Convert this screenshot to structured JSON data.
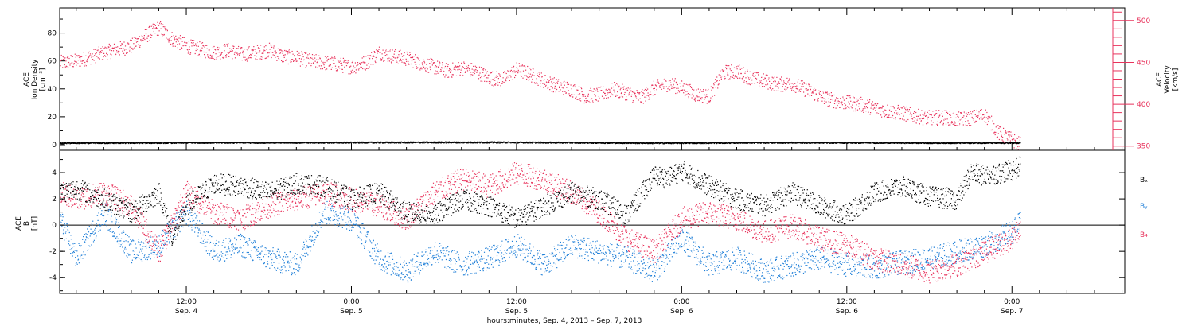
{
  "figure": {
    "xlabel": "hours:minutes, Sep.  4, 2013 – Sep.  7, 2013",
    "time_ticks": [
      {
        "hour": 12,
        "time": "12:00",
        "date": "Sep. 4"
      },
      {
        "hour": 24,
        "time": "0:00",
        "date": "Sep. 5"
      },
      {
        "hour": 36,
        "time": "12:00",
        "date": "Sep. 5"
      },
      {
        "hour": 48,
        "time": "0:00",
        "date": "Sep. 6"
      },
      {
        "hour": 60,
        "time": "12:00",
        "date": "Sep. 6"
      },
      {
        "hour": 72,
        "time": "0:00",
        "date": "Sep. 7"
      }
    ],
    "x_range_hours": [
      2.8,
      80.2
    ],
    "data_end_hour": 72.6,
    "colors": {
      "black": "#000000",
      "red": "#e8335c",
      "blue": "#1f7fd8"
    }
  },
  "chart_data": [
    {
      "type": "scatter",
      "left_ylabel": [
        "ACE",
        "Ion Density",
        "[cm⁻³]"
      ],
      "right_ylabel": [
        "ACE",
        "Velocity",
        "[km/s]"
      ],
      "ylim_left": [
        -4,
        98
      ],
      "ylim_right": [
        345,
        515
      ],
      "left_ticks": [
        0,
        20,
        40,
        60,
        80
      ],
      "right_ticks": [
        350,
        400,
        450,
        500
      ],
      "series": [
        {
          "name": "Ion Density",
          "axis": "left",
          "color": "#000000",
          "x": [
            2.8,
            8,
            14,
            20,
            26,
            30,
            34,
            38,
            42,
            46,
            50,
            54,
            58,
            62,
            66,
            70,
            72.6
          ],
          "y": [
            1.5,
            1.6,
            1.8,
            1.8,
            1.9,
            2.0,
            2.0,
            1.9,
            1.7,
            1.5,
            1.6,
            1.8,
            1.8,
            1.7,
            1.6,
            1.6,
            1.5
          ]
        },
        {
          "name": "Velocity",
          "axis": "right",
          "color": "#e8335c",
          "x": [
            2.8,
            4,
            6,
            8,
            9,
            10,
            11,
            12,
            13,
            14,
            15,
            16,
            17,
            18,
            19,
            20,
            21,
            22,
            23,
            24,
            25,
            26,
            27,
            28,
            29,
            30,
            31,
            32,
            33,
            34,
            35,
            36,
            37,
            38,
            39,
            40,
            41,
            42,
            43,
            44,
            45,
            46,
            47,
            48,
            49,
            50,
            51,
            52,
            53,
            54,
            55,
            56,
            57,
            58,
            59,
            60,
            61,
            62,
            63,
            64,
            65,
            66,
            67,
            68,
            69,
            70,
            71,
            72,
            72.6
          ],
          "y": [
            450,
            452,
            462,
            470,
            482,
            492,
            478,
            470,
            466,
            462,
            465,
            460,
            462,
            465,
            458,
            456,
            452,
            450,
            448,
            445,
            450,
            462,
            458,
            455,
            450,
            445,
            440,
            444,
            440,
            432,
            430,
            442,
            436,
            428,
            422,
            418,
            410,
            412,
            418,
            414,
            408,
            420,
            425,
            420,
            412,
            410,
            438,
            440,
            432,
            428,
            424,
            425,
            418,
            410,
            405,
            402,
            400,
            396,
            392,
            390,
            386,
            384,
            385,
            382,
            384,
            388,
            366,
            358,
            352
          ]
        }
      ]
    },
    {
      "type": "scatter",
      "ylabel": [
        "ACE",
        "B",
        "[nT]"
      ],
      "ylim": [
        -5.2,
        5.7
      ],
      "y_ticks": [
        -4,
        -2,
        0,
        2,
        4
      ],
      "legend": [
        "Bₓ",
        "Bᵧ",
        "B₄"
      ],
      "series": [
        {
          "name": "Bₓ",
          "color": "#000000",
          "x": [
            2.8,
            4,
            6,
            8,
            10,
            11,
            12,
            14,
            16,
            18,
            20,
            22,
            24,
            26,
            28,
            30,
            32,
            34,
            36,
            38,
            40,
            42,
            44,
            46,
            47,
            48,
            50,
            52,
            54,
            56,
            58,
            60,
            62,
            64,
            66,
            68,
            69,
            70,
            72,
            72.6
          ],
          "y": [
            2.5,
            2.8,
            2.0,
            1.0,
            2.5,
            -1.0,
            1.5,
            3.2,
            3.0,
            2.5,
            3.2,
            3.0,
            2.0,
            2.5,
            1.0,
            0.8,
            2.0,
            1.5,
            0.5,
            1.5,
            2.5,
            2.0,
            0.8,
            3.8,
            3.6,
            4.2,
            3.0,
            2.0,
            1.5,
            2.5,
            1.5,
            0.8,
            2.5,
            3.0,
            2.2,
            2.0,
            4.0,
            3.8,
            4.2,
            4.5
          ]
        },
        {
          "name": "Bᵧ",
          "color": "#1f7fd8",
          "x": [
            2.8,
            4,
            6,
            8,
            10,
            12,
            14,
            16,
            18,
            20,
            22,
            24,
            26,
            28,
            30,
            32,
            34,
            36,
            38,
            40,
            42,
            44,
            46,
            48,
            50,
            52,
            54,
            56,
            58,
            60,
            62,
            64,
            66,
            68,
            70,
            72,
            72.6
          ],
          "y": [
            0.5,
            -2.5,
            1.0,
            -2.0,
            -1.5,
            1.0,
            -2.0,
            -1.5,
            -2.5,
            -3.0,
            1.0,
            0.5,
            -2.5,
            -3.5,
            -2.0,
            -3.0,
            -2.5,
            -1.5,
            -3.0,
            -1.5,
            -2.0,
            -2.5,
            -3.5,
            -1.0,
            -3.0,
            -2.5,
            -3.5,
            -3.0,
            -2.5,
            -3.0,
            -3.2,
            -2.8,
            -2.5,
            -2.0,
            -1.5,
            -0.5,
            0.2
          ]
        },
        {
          "name": "B₄",
          "color": "#e8335c",
          "x": [
            2.8,
            4,
            6,
            8,
            10,
            12,
            14,
            16,
            18,
            20,
            22,
            24,
            26,
            28,
            30,
            32,
            34,
            36,
            38,
            40,
            42,
            44,
            46,
            48,
            50,
            52,
            54,
            56,
            58,
            60,
            62,
            64,
            66,
            68,
            70,
            72,
            72.6
          ],
          "y": [
            2.5,
            2.0,
            2.5,
            1.5,
            -2.0,
            2.5,
            1.0,
            0.5,
            1.5,
            2.0,
            2.5,
            2.0,
            1.5,
            0.5,
            2.5,
            3.5,
            3.0,
            4.0,
            3.5,
            2.5,
            1.0,
            -1.0,
            -2.0,
            0.5,
            1.0,
            0.5,
            -0.5,
            0.0,
            -1.0,
            -1.5,
            -2.5,
            -3.0,
            -3.5,
            -3.0,
            -2.0,
            -1.0,
            0.0
          ]
        }
      ]
    }
  ]
}
